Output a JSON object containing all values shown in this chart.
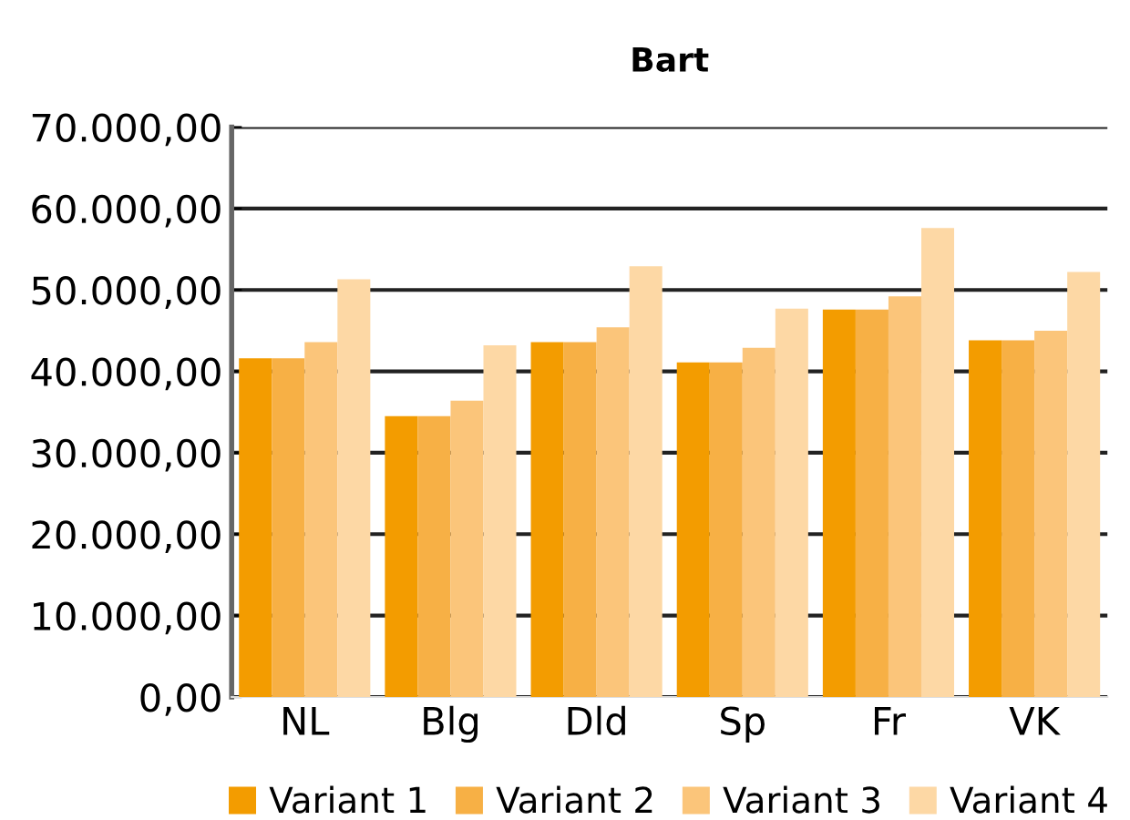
{
  "chart_data": {
    "type": "bar",
    "title": "Bart",
    "categories": [
      "NL",
      "Blg",
      "Dld",
      "Sp",
      "Fr",
      "VK"
    ],
    "series": [
      {
        "name": "Variant 1",
        "color": "#f39c00",
        "values": [
          41600,
          34500,
          43600,
          41100,
          47600,
          43800
        ]
      },
      {
        "name": "Variant 2",
        "color": "#f7b045",
        "values": [
          41600,
          34500,
          43600,
          41100,
          47600,
          43800
        ]
      },
      {
        "name": "Variant 3",
        "color": "#fbc57a",
        "values": [
          43600,
          36400,
          45400,
          42900,
          49200,
          45000
        ]
      },
      {
        "name": "Variant 4",
        "color": "#fdd8a5",
        "values": [
          51300,
          43200,
          52900,
          47700,
          57600,
          52200
        ]
      }
    ],
    "ylim": [
      0,
      70000
    ],
    "yticks": [
      {
        "value": 0,
        "label": "0,00"
      },
      {
        "value": 10000,
        "label": "10.000,00"
      },
      {
        "value": 20000,
        "label": "20.000,00"
      },
      {
        "value": 30000,
        "label": "30.000,00"
      },
      {
        "value": 40000,
        "label": "40.000,00"
      },
      {
        "value": 50000,
        "label": "50.000,00"
      },
      {
        "value": 60000,
        "label": "60.000,00"
      },
      {
        "value": 70000,
        "label": "70.000,00"
      }
    ],
    "grid": "y",
    "legend": "bottom"
  }
}
